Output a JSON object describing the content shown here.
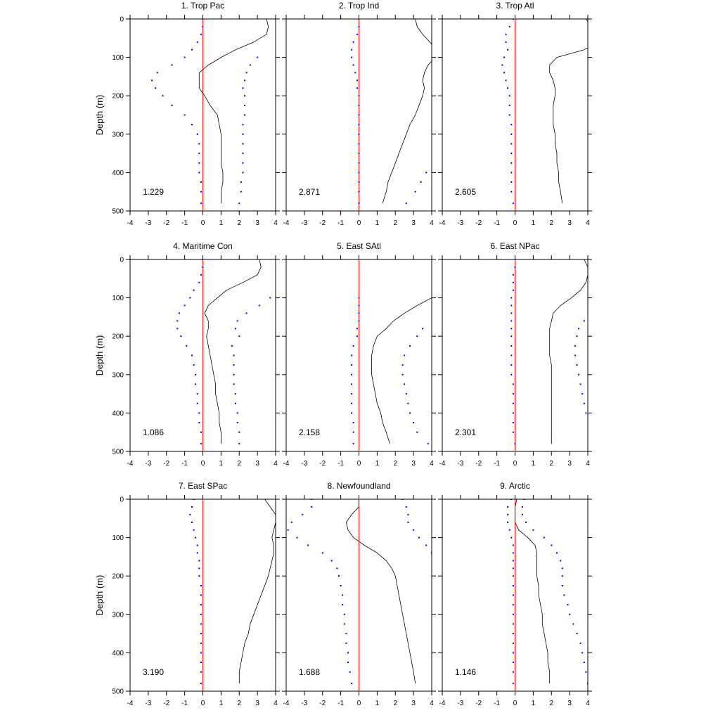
{
  "page": {
    "ylabel": "Depth (m)"
  },
  "colors": {
    "zero_line": "#ff0000",
    "dots": "#0000ff",
    "curve": "#000000",
    "axes": "#000000"
  },
  "chart_data": [
    {
      "type": "line",
      "title": "1. Trop Pac",
      "annotation": "1.229",
      "xlim": [
        -4,
        4
      ],
      "ylim": [
        0,
        500
      ],
      "y_inverted": true,
      "x_ticks": [
        "-4",
        "-3",
        "-2",
        "-1",
        "0",
        "1",
        "2",
        "3",
        "4"
      ],
      "y_ticks": [
        "0",
        "100",
        "200",
        "300",
        "400",
        "500"
      ],
      "depth": [
        0,
        20,
        40,
        60,
        80,
        100,
        120,
        140,
        160,
        180,
        200,
        225,
        250,
        275,
        300,
        325,
        350,
        375,
        400,
        425,
        450,
        480
      ],
      "series": [
        {
          "style": "line",
          "values": [
            3.5,
            3.6,
            3.5,
            2.8,
            1.8,
            1.0,
            0.3,
            -0.2,
            -0.2,
            -0.2,
            0.1,
            0.4,
            0.8,
            0.9,
            1.0,
            1.0,
            1.0,
            1.0,
            1.1,
            1.1,
            1.0,
            1.0
          ]
        },
        {
          "style": "dots",
          "values": [
            0.0,
            0.0,
            -0.1,
            -0.3,
            -0.6,
            -1.0,
            -1.7,
            -2.5,
            -2.8,
            -2.6,
            -2.2,
            -1.7,
            -1.0,
            -0.6,
            -0.3,
            -0.2,
            -0.2,
            -0.2,
            -0.2,
            -0.1,
            -0.1,
            -0.1
          ]
        },
        {
          "style": "dots",
          "values": [
            null,
            null,
            null,
            null,
            null,
            3.0,
            2.6,
            2.4,
            2.3,
            2.2,
            2.3,
            2.3,
            2.3,
            2.2,
            2.2,
            2.2,
            2.2,
            2.2,
            2.2,
            2.1,
            2.1,
            2.0
          ]
        }
      ]
    },
    {
      "type": "line",
      "title": "2. Trop Ind",
      "annotation": "2.871",
      "xlim": [
        -4,
        4
      ],
      "ylim": [
        0,
        500
      ],
      "y_inverted": true,
      "x_ticks": [
        "-4",
        "-3",
        "-2",
        "-1",
        "0",
        "1",
        "2",
        "3",
        "4"
      ],
      "y_ticks": [
        "0",
        "100",
        "200",
        "300",
        "400",
        "500"
      ],
      "depth": [
        0,
        20,
        40,
        60,
        80,
        100,
        120,
        140,
        160,
        180,
        200,
        225,
        250,
        275,
        300,
        325,
        350,
        375,
        400,
        425,
        450,
        480
      ],
      "series": [
        {
          "style": "line",
          "values": [
            3.1,
            3.2,
            3.5,
            3.9,
            4.2,
            4.2,
            3.8,
            3.6,
            3.5,
            3.6,
            3.5,
            3.3,
            3.1,
            2.8,
            2.6,
            2.4,
            2.2,
            2.0,
            1.8,
            1.6,
            1.5,
            1.3
          ]
        },
        {
          "style": "dots",
          "values": [
            0.0,
            0.0,
            -0.1,
            -0.3,
            -0.4,
            -0.4,
            -0.3,
            -0.2,
            -0.1,
            -0.1,
            0.0,
            0.0,
            0.0,
            0.0,
            0.0,
            0.0,
            0.0,
            0.0,
            0.0,
            0.0,
            0.0,
            0.0
          ]
        },
        {
          "style": "dots",
          "values": [
            null,
            null,
            null,
            null,
            null,
            null,
            null,
            null,
            null,
            null,
            null,
            null,
            null,
            null,
            null,
            null,
            null,
            null,
            3.7,
            3.4,
            3.1,
            2.6
          ]
        }
      ]
    },
    {
      "type": "line",
      "title": "3. Trop Atl",
      "annotation": "2.605",
      "xlim": [
        -4,
        4
      ],
      "ylim": [
        0,
        500
      ],
      "y_inverted": true,
      "x_ticks": [
        "-4",
        "-3",
        "-2",
        "-1",
        "0",
        "1",
        "2",
        "3",
        "4"
      ],
      "y_ticks": [
        "0",
        "100",
        "200",
        "300",
        "400",
        "500"
      ],
      "depth": [
        0,
        20,
        40,
        60,
        80,
        100,
        120,
        140,
        160,
        180,
        200,
        225,
        250,
        275,
        300,
        325,
        350,
        375,
        400,
        425,
        450,
        480
      ],
      "series": [
        {
          "style": "line",
          "values": [
            3.9,
            4.2,
            4.5,
            4.6,
            3.8,
            2.3,
            1.9,
            1.9,
            2.1,
            2.2,
            2.2,
            2.1,
            2.1,
            2.1,
            2.2,
            2.2,
            2.3,
            2.3,
            2.4,
            2.4,
            2.5,
            2.6
          ]
        },
        {
          "style": "dots",
          "values": [
            -0.1,
            -0.3,
            -0.5,
            -0.5,
            -0.4,
            -0.6,
            -0.7,
            -0.6,
            -0.5,
            -0.4,
            -0.3,
            -0.3,
            -0.3,
            -0.2,
            -0.2,
            -0.2,
            -0.2,
            -0.2,
            -0.2,
            -0.2,
            -0.2,
            -0.1
          ]
        }
      ]
    },
    {
      "type": "line",
      "title": "4. Maritime Con",
      "annotation": "1.086",
      "xlim": [
        -4,
        4
      ],
      "ylim": [
        0,
        500
      ],
      "y_inverted": true,
      "x_ticks": [
        "-4",
        "-3",
        "-2",
        "-1",
        "0",
        "1",
        "2",
        "3",
        "4"
      ],
      "y_ticks": [
        "0",
        "100",
        "200",
        "300",
        "400",
        "500"
      ],
      "depth": [
        0,
        20,
        40,
        60,
        80,
        100,
        120,
        140,
        160,
        180,
        200,
        225,
        250,
        275,
        300,
        325,
        350,
        375,
        400,
        425,
        450,
        480
      ],
      "series": [
        {
          "style": "line",
          "values": [
            3.1,
            3.2,
            3.0,
            2.2,
            1.3,
            0.8,
            0.3,
            0.1,
            0.3,
            0.3,
            0.2,
            0.3,
            0.4,
            0.5,
            0.6,
            0.7,
            0.7,
            0.8,
            0.9,
            0.9,
            1.0,
            1.0
          ]
        },
        {
          "style": "dots",
          "values": [
            0.0,
            0.0,
            -0.1,
            -0.2,
            -0.5,
            -0.7,
            -1.0,
            -1.3,
            -1.4,
            -1.4,
            -1.2,
            -0.9,
            -0.6,
            -0.5,
            -0.4,
            -0.4,
            -0.3,
            -0.3,
            -0.2,
            -0.2,
            -0.1,
            -0.1
          ]
        },
        {
          "style": "dots",
          "values": [
            null,
            null,
            null,
            null,
            null,
            3.7,
            3.1,
            2.4,
            1.9,
            1.8,
            2.0,
            1.6,
            1.7,
            1.7,
            1.7,
            1.7,
            1.8,
            1.8,
            1.9,
            1.9,
            2.0,
            2.0
          ]
        }
      ]
    },
    {
      "type": "line",
      "title": "5. East SAtl",
      "annotation": "2.158",
      "xlim": [
        -4,
        4
      ],
      "ylim": [
        0,
        500
      ],
      "y_inverted": true,
      "x_ticks": [
        "-4",
        "-3",
        "-2",
        "-1",
        "0",
        "1",
        "2",
        "3",
        "4"
      ],
      "y_ticks": [
        "0",
        "100",
        "200",
        "300",
        "400",
        "500"
      ],
      "depth": [
        100,
        120,
        140,
        160,
        180,
        200,
        225,
        250,
        275,
        300,
        325,
        350,
        375,
        400,
        425,
        450,
        480
      ],
      "series": [
        {
          "style": "line",
          "values": [
            4.0,
            3.2,
            2.5,
            1.9,
            1.5,
            1.0,
            0.8,
            0.7,
            0.7,
            0.7,
            0.8,
            0.9,
            1.0,
            1.2,
            1.3,
            1.5,
            1.7
          ]
        },
        {
          "style": "dots",
          "values": [
            0.0,
            0.0,
            0.0,
            0.0,
            -0.1,
            -0.1,
            -0.3,
            -0.4,
            -0.4,
            -0.4,
            -0.4,
            -0.4,
            -0.4,
            -0.4,
            -0.3,
            -0.3,
            -0.3
          ]
        },
        {
          "style": "dots",
          "values": [
            null,
            null,
            null,
            null,
            3.5,
            3.2,
            2.8,
            2.5,
            2.4,
            2.4,
            2.5,
            2.6,
            2.7,
            2.8,
            3.0,
            3.2,
            3.8
          ]
        }
      ]
    },
    {
      "type": "line",
      "title": "6. East NPac",
      "annotation": "2.301",
      "xlim": [
        -4,
        4
      ],
      "ylim": [
        0,
        500
      ],
      "y_inverted": true,
      "x_ticks": [
        "-4",
        "-3",
        "-2",
        "-1",
        "0",
        "1",
        "2",
        "3",
        "4"
      ],
      "y_ticks": [
        "0",
        "100",
        "200",
        "300",
        "400",
        "500"
      ],
      "depth": [
        0,
        20,
        40,
        60,
        80,
        100,
        120,
        140,
        160,
        180,
        200,
        225,
        250,
        275,
        300,
        325,
        350,
        375,
        400,
        425,
        450,
        480
      ],
      "series": [
        {
          "style": "line",
          "values": [
            3.8,
            4.0,
            4.0,
            3.9,
            3.6,
            3.1,
            2.5,
            2.1,
            2.0,
            1.9,
            1.9,
            1.9,
            1.9,
            2.0,
            2.0,
            2.0,
            2.0,
            2.0,
            2.0,
            2.0,
            2.0,
            2.0
          ]
        },
        {
          "style": "dots",
          "values": [
            0.0,
            0.0,
            -0.1,
            -0.1,
            -0.1,
            -0.2,
            -0.2,
            -0.2,
            -0.2,
            -0.2,
            -0.2,
            -0.2,
            -0.2,
            -0.2,
            -0.2,
            -0.1,
            -0.1,
            -0.1,
            -0.1,
            -0.1,
            -0.1,
            0.0
          ]
        },
        {
          "style": "dots",
          "values": [
            null,
            null,
            null,
            null,
            null,
            null,
            null,
            null,
            3.8,
            3.5,
            3.4,
            3.3,
            3.3,
            3.4,
            3.5,
            3.6,
            3.7,
            3.8,
            3.9,
            null,
            null,
            null
          ]
        }
      ]
    },
    {
      "type": "line",
      "title": "7. East SPac",
      "annotation": "3.190",
      "xlim": [
        -4,
        4
      ],
      "ylim": [
        0,
        500
      ],
      "y_inverted": true,
      "x_ticks": [
        "-4",
        "-3",
        "-2",
        "-1",
        "0",
        "1",
        "2",
        "3",
        "4"
      ],
      "y_ticks": [
        "0",
        "100",
        "200",
        "300",
        "400",
        "500"
      ],
      "depth": [
        0,
        20,
        40,
        60,
        80,
        100,
        120,
        140,
        160,
        180,
        200,
        225,
        250,
        275,
        300,
        325,
        350,
        375,
        400,
        425,
        450,
        480
      ],
      "series": [
        {
          "style": "line",
          "values": [
            3.4,
            3.7,
            4.0,
            4.0,
            3.9,
            3.8,
            3.9,
            3.9,
            3.8,
            3.7,
            3.6,
            3.4,
            3.2,
            3.0,
            2.8,
            2.6,
            2.5,
            2.3,
            2.2,
            2.1,
            2.0,
            2.0
          ]
        },
        {
          "style": "dots",
          "values": [
            -0.5,
            -0.6,
            -0.7,
            -0.6,
            -0.5,
            -0.4,
            -0.3,
            -0.3,
            -0.2,
            -0.2,
            -0.2,
            -0.1,
            -0.1,
            -0.1,
            -0.1,
            -0.1,
            -0.1,
            -0.1,
            -0.1,
            -0.1,
            -0.1,
            -0.1
          ]
        }
      ]
    },
    {
      "type": "line",
      "title": "8. Newfoundland",
      "annotation": "1.688",
      "xlim": [
        -4,
        4
      ],
      "ylim": [
        0,
        500
      ],
      "y_inverted": true,
      "x_ticks": [
        "-4",
        "-3",
        "-2",
        "-1",
        "0",
        "1",
        "2",
        "3",
        "4"
      ],
      "y_ticks": [
        "0",
        "100",
        "200",
        "300",
        "400",
        "500"
      ],
      "depth": [
        0,
        20,
        40,
        60,
        80,
        100,
        120,
        140,
        160,
        180,
        200,
        225,
        250,
        275,
        300,
        325,
        350,
        375,
        400,
        425,
        450,
        480
      ],
      "series": [
        {
          "style": "line",
          "values": [
            0.0,
            0.0,
            -0.4,
            -0.7,
            -0.6,
            -0.3,
            0.3,
            1.0,
            1.5,
            1.8,
            2.0,
            2.1,
            2.2,
            2.3,
            2.4,
            2.5,
            2.6,
            2.7,
            2.8,
            2.9,
            3.0,
            3.1
          ]
        },
        {
          "style": "dots",
          "values": [
            -2.6,
            -2.6,
            -3.1,
            -3.7,
            -3.9,
            -3.4,
            -2.8,
            -2.0,
            -1.5,
            -1.2,
            -1.1,
            -1.0,
            -0.9,
            -0.9,
            -0.8,
            -0.8,
            -0.7,
            -0.7,
            -0.6,
            -0.6,
            -0.5,
            -0.4
          ]
        },
        {
          "style": "dots",
          "values": [
            2.4,
            2.6,
            2.7,
            2.7,
            3.0,
            3.3,
            3.7,
            4.0,
            null,
            null,
            null,
            null,
            null,
            null,
            null,
            null,
            null,
            null,
            null,
            null,
            null,
            null
          ]
        }
      ]
    },
    {
      "type": "line",
      "title": "9. Arctic",
      "annotation": "1.146",
      "xlim": [
        -4,
        4
      ],
      "ylim": [
        0,
        500
      ],
      "y_inverted": true,
      "x_ticks": [
        "-4",
        "-3",
        "-2",
        "-1",
        "0",
        "1",
        "2",
        "3",
        "4"
      ],
      "y_ticks": [
        "0",
        "100",
        "200",
        "300",
        "400",
        "500"
      ],
      "depth": [
        0,
        20,
        40,
        60,
        80,
        100,
        120,
        140,
        160,
        180,
        200,
        225,
        250,
        275,
        300,
        325,
        350,
        375,
        400,
        425,
        450,
        480
      ],
      "series": [
        {
          "style": "line",
          "values": [
            0.1,
            0.0,
            0.0,
            0.0,
            0.2,
            0.7,
            1.1,
            1.2,
            1.2,
            1.2,
            1.2,
            1.3,
            1.3,
            1.4,
            1.5,
            1.5,
            1.6,
            1.7,
            1.8,
            1.8,
            1.9,
            1.9
          ]
        },
        {
          "style": "dots",
          "values": [
            -0.2,
            -0.4,
            -0.4,
            -0.4,
            -0.3,
            -0.2,
            -0.1,
            -0.1,
            -0.1,
            -0.1,
            -0.1,
            -0.1,
            -0.1,
            -0.1,
            -0.1,
            -0.1,
            -0.1,
            -0.1,
            -0.1,
            -0.1,
            -0.1,
            -0.1
          ]
        },
        {
          "style": "dots",
          "values": [
            0.5,
            0.4,
            0.4,
            0.6,
            1.0,
            1.6,
            2.0,
            2.3,
            2.5,
            2.6,
            2.6,
            2.6,
            2.7,
            2.9,
            3.0,
            3.2,
            3.4,
            3.6,
            3.7,
            3.8,
            3.9,
            4.0
          ]
        }
      ]
    }
  ]
}
